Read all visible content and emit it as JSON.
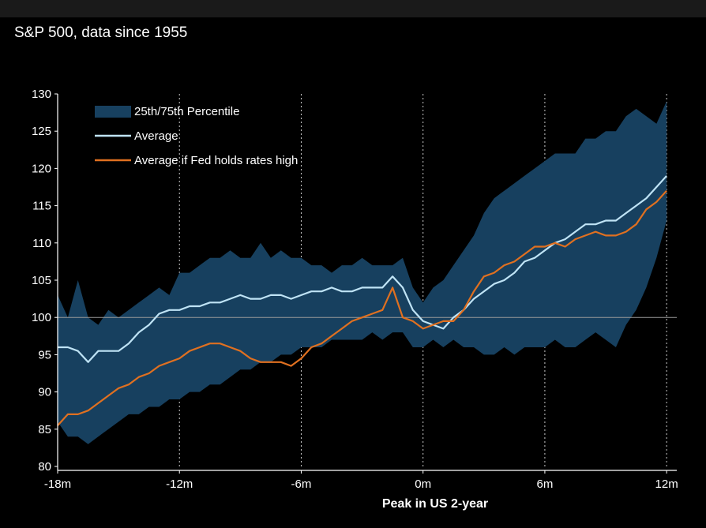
{
  "chart_data": {
    "type": "line",
    "title": "S&P 500, data since 1955",
    "xlabel": "Peak in US 2-year",
    "ylabel": "",
    "xlim": [
      -18,
      12.5
    ],
    "ylim": [
      80,
      130
    ],
    "x_ticks": [
      -18,
      -12,
      -6,
      0,
      6,
      12
    ],
    "x_tick_labels": [
      "-18m",
      "-12m",
      "-6m",
      "0m",
      "6m",
      "12m"
    ],
    "y_ticks": [
      80,
      85,
      90,
      95,
      100,
      105,
      110,
      115,
      120,
      125,
      130
    ],
    "y_tick_labels": [
      "80",
      "85",
      "90",
      "95",
      "100",
      "105",
      "110",
      "115",
      "120",
      "125",
      "130"
    ],
    "vertical_gridlines_at": [
      -12,
      -6,
      0,
      6,
      12
    ],
    "reference_line_y": 100,
    "legend_position": "top-left",
    "x": [
      -18,
      -17.5,
      -17,
      -16.5,
      -16,
      -15.5,
      -15,
      -14.5,
      -14,
      -13.5,
      -13,
      -12.5,
      -12,
      -11.5,
      -11,
      -10.5,
      -10,
      -9.5,
      -9,
      -8.5,
      -8,
      -7.5,
      -7,
      -6.5,
      -6,
      -5.5,
      -5,
      -4.5,
      -4,
      -3.5,
      -3,
      -2.5,
      -2,
      -1.5,
      -1,
      -0.5,
      0,
      0.5,
      1,
      1.5,
      2,
      2.5,
      3,
      3.5,
      4,
      4.5,
      5,
      5.5,
      6,
      6.5,
      7,
      7.5,
      8,
      8.5,
      9,
      9.5,
      10,
      10.5,
      11,
      11.5,
      12
    ],
    "series": [
      {
        "name": "25th/75th Percentile",
        "kind": "band",
        "color": "#17405f",
        "upper": [
          103,
          100,
          105,
          100,
          99,
          101,
          100,
          101,
          102,
          103,
          104,
          103,
          106,
          106,
          107,
          108,
          108,
          109,
          108,
          108,
          110,
          108,
          109,
          108,
          108,
          107,
          107,
          106,
          107,
          107,
          108,
          107,
          107,
          107,
          108,
          104,
          102,
          104,
          105,
          107,
          109,
          111,
          114,
          116,
          117,
          118,
          119,
          120,
          121,
          122,
          122,
          122,
          124,
          124,
          125,
          125,
          127,
          128,
          127,
          126,
          129
        ],
        "lower": [
          86,
          84,
          84,
          83,
          84,
          85,
          86,
          87,
          87,
          88,
          88,
          89,
          89,
          90,
          90,
          91,
          91,
          92,
          93,
          93,
          94,
          94,
          95,
          95,
          96,
          96,
          96,
          97,
          97,
          97,
          97,
          98,
          97,
          98,
          98,
          96,
          96,
          97,
          96,
          97,
          96,
          96,
          95,
          95,
          96,
          95,
          96,
          96,
          96,
          97,
          96,
          96,
          97,
          98,
          97,
          96,
          99,
          101,
          104,
          108,
          113
        ]
      },
      {
        "name": "Average",
        "kind": "line",
        "color": "#bfe3f5",
        "values": [
          96,
          96,
          95.5,
          94,
          95.5,
          95.5,
          95.5,
          96.5,
          98,
          99,
          100.5,
          101,
          101,
          101.5,
          101.5,
          102,
          102,
          102.5,
          103,
          102.5,
          102.5,
          103,
          103,
          102.5,
          103,
          103.5,
          103.5,
          104,
          103.5,
          103.5,
          104,
          104,
          104,
          105.5,
          104,
          101,
          99.5,
          99,
          98.5,
          100,
          101,
          102.5,
          103.5,
          104.5,
          105,
          106,
          107.5,
          108,
          109,
          110,
          110.5,
          111.5,
          112.5,
          112.5,
          113,
          113,
          114,
          115,
          116,
          117.5,
          119
        ]
      },
      {
        "name": "Average if Fed holds rates high",
        "kind": "line",
        "color": "#e07020",
        "values": [
          85.5,
          87,
          87,
          87.5,
          88.5,
          89.5,
          90.5,
          91,
          92,
          92.5,
          93.5,
          94,
          94.5,
          95.5,
          96,
          96.5,
          96.5,
          96,
          95.5,
          94.5,
          94,
          94,
          94,
          93.5,
          94.5,
          96,
          96.5,
          97.5,
          98.5,
          99.5,
          100,
          100.5,
          101,
          104,
          100,
          99.5,
          98.5,
          99,
          99.5,
          99.5,
          101,
          103.5,
          105.5,
          106,
          107,
          107.5,
          108.5,
          109.5,
          109.5,
          110,
          109.5,
          110.5,
          111,
          111.5,
          111,
          111,
          111.5,
          112.5,
          114.5,
          115.5,
          117
        ]
      }
    ]
  }
}
